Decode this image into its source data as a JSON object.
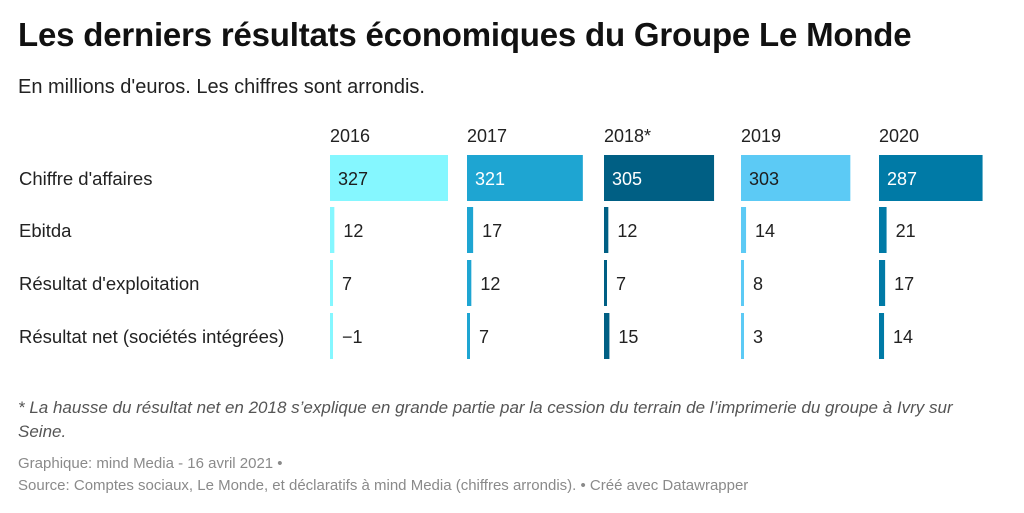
{
  "title": "Les derniers résultats économiques du Groupe Le Monde",
  "subtitle": "En millions d'euros. Les chiffres sont arrondis.",
  "note": "* La hausse du résultat net en 2018 s’explique en grande partie par la cession du terrain de l’imprimerie du groupe à Ivry sur Seine.",
  "credit": "Graphique: mind Media - 16 avril 2021 •",
  "source": "Source: Comptes sociaux, Le Monde, et déclaratifs à mind Media (chiffres arrondis). • Créé avec Datawrapper",
  "colors": {
    "2016": "#85f7ff",
    "2017": "#1ea5d2",
    "2018*": "#005f84",
    "2019": "#5ccaf5",
    "2020": "#007aa6"
  },
  "chart_data": {
    "type": "bar",
    "layout": "small-multiples",
    "title": "Les derniers résultats économiques du Groupe Le Monde",
    "columns": [
      "2016",
      "2017",
      "2018*",
      "2019",
      "2020"
    ],
    "rows": [
      "Chiffre d'affaires",
      "Ebitda",
      "Résultat d'exploitation",
      "Résultat net (sociétés intégrées)"
    ],
    "values": [
      [
        327,
        321,
        305,
        303,
        287
      ],
      [
        12,
        17,
        12,
        14,
        21
      ],
      [
        7,
        12,
        7,
        8,
        17
      ],
      [
        -1,
        7,
        15,
        3,
        14
      ]
    ],
    "value_labels": [
      [
        "327",
        "321",
        "305",
        "303",
        "287"
      ],
      [
        "12",
        "17",
        "12",
        "14",
        "21"
      ],
      [
        "7",
        "12",
        "7",
        "8",
        "17"
      ],
      [
        "−1",
        "7",
        "15",
        "3",
        "14"
      ]
    ],
    "xlim": [
      0,
      327
    ]
  }
}
